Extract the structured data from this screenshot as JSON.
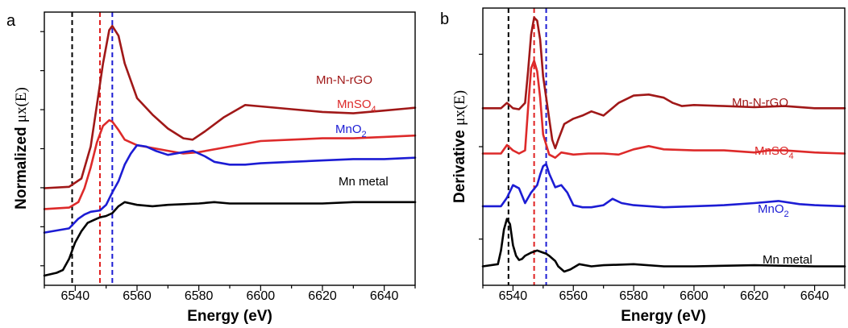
{
  "colors": {
    "mn_n_rgo": "#a01818",
    "mnso4": "#dd2a2a",
    "mno2": "#1c1cd4",
    "mn_metal": "#000000",
    "ref_black": "#000000",
    "ref_red": "#e02020",
    "ref_blue": "#1c1cd4"
  },
  "chart_data": [
    {
      "panel": "a",
      "type": "line",
      "xlabel": "Energy (eV)",
      "ylabel_prefix": "Normalized ",
      "ylabel_symbol": "μx(E)",
      "xlim": [
        6530,
        6650
      ],
      "xticks": [
        6540,
        6560,
        6580,
        6600,
        6620,
        6640
      ],
      "yticks": [
        "",
        "",
        "",
        "",
        "",
        "",
        ""
      ],
      "reference_lines": [
        {
          "x": 6539,
          "color": "#000000"
        },
        {
          "x": 6548,
          "color": "#e02020"
        },
        {
          "x": 6552,
          "color": "#1c1cd4"
        }
      ],
      "series": [
        {
          "name": "Mn-N-rGO",
          "color": "#a01818",
          "points": [
            [
              6530,
              0.95
            ],
            [
              6538,
              0.96
            ],
            [
              6542,
              1.02
            ],
            [
              6545,
              1.25
            ],
            [
              6547,
              1.55
            ],
            [
              6549,
              1.85
            ],
            [
              6551,
              2.09
            ],
            [
              6552,
              2.12
            ],
            [
              6554,
              2.05
            ],
            [
              6556,
              1.85
            ],
            [
              6560,
              1.6
            ],
            [
              6565,
              1.48
            ],
            [
              6570,
              1.38
            ],
            [
              6575,
              1.31
            ],
            [
              6578,
              1.3
            ],
            [
              6582,
              1.36
            ],
            [
              6588,
              1.46
            ],
            [
              6595,
              1.55
            ],
            [
              6600,
              1.54
            ],
            [
              6610,
              1.52
            ],
            [
              6620,
              1.5
            ],
            [
              6630,
              1.49
            ],
            [
              6640,
              1.51
            ],
            [
              6650,
              1.53
            ]
          ]
        },
        {
          "name": "MnSO4",
          "label_main": "MnSO",
          "label_sub": "4",
          "color": "#dd2a2a",
          "points": [
            [
              6530,
              0.8
            ],
            [
              6538,
              0.81
            ],
            [
              6541,
              0.85
            ],
            [
              6543,
              0.95
            ],
            [
              6545,
              1.1
            ],
            [
              6547,
              1.28
            ],
            [
              6549,
              1.4
            ],
            [
              6551,
              1.44
            ],
            [
              6552,
              1.43
            ],
            [
              6554,
              1.37
            ],
            [
              6556,
              1.3
            ],
            [
              6560,
              1.26
            ],
            [
              6565,
              1.24
            ],
            [
              6570,
              1.22
            ],
            [
              6575,
              1.2
            ],
            [
              6580,
              1.21
            ],
            [
              6590,
              1.25
            ],
            [
              6600,
              1.29
            ],
            [
              6610,
              1.3
            ],
            [
              6620,
              1.31
            ],
            [
              6630,
              1.31
            ],
            [
              6640,
              1.32
            ],
            [
              6650,
              1.33
            ]
          ]
        },
        {
          "name": "MnO2",
          "label_main": "MnO",
          "label_sub": "2",
          "color": "#1c1cd4",
          "points": [
            [
              6530,
              0.63
            ],
            [
              6538,
              0.66
            ],
            [
              6541,
              0.73
            ],
            [
              6543,
              0.76
            ],
            [
              6545,
              0.78
            ],
            [
              6548,
              0.79
            ],
            [
              6550,
              0.83
            ],
            [
              6552,
              0.92
            ],
            [
              6554,
              1.0
            ],
            [
              6556,
              1.12
            ],
            [
              6558,
              1.2
            ],
            [
              6560,
              1.26
            ],
            [
              6563,
              1.25
            ],
            [
              6566,
              1.22
            ],
            [
              6570,
              1.19
            ],
            [
              6575,
              1.21
            ],
            [
              6578,
              1.22
            ],
            [
              6582,
              1.18
            ],
            [
              6585,
              1.14
            ],
            [
              6590,
              1.12
            ],
            [
              6595,
              1.12
            ],
            [
              6600,
              1.13
            ],
            [
              6610,
              1.14
            ],
            [
              6620,
              1.15
            ],
            [
              6630,
              1.16
            ],
            [
              6640,
              1.16
            ],
            [
              6650,
              1.17
            ]
          ]
        },
        {
          "name": "Mn metal",
          "color": "#000000",
          "points": [
            [
              6530,
              0.32
            ],
            [
              6534,
              0.34
            ],
            [
              6536,
              0.36
            ],
            [
              6538,
              0.44
            ],
            [
              6540,
              0.56
            ],
            [
              6542,
              0.64
            ],
            [
              6544,
              0.7
            ],
            [
              6546,
              0.72
            ],
            [
              6548,
              0.74
            ],
            [
              6550,
              0.75
            ],
            [
              6552,
              0.77
            ],
            [
              6554,
              0.82
            ],
            [
              6556,
              0.85
            ],
            [
              6558,
              0.84
            ],
            [
              6560,
              0.83
            ],
            [
              6565,
              0.82
            ],
            [
              6570,
              0.83
            ],
            [
              6580,
              0.84
            ],
            [
              6585,
              0.85
            ],
            [
              6590,
              0.84
            ],
            [
              6600,
              0.84
            ],
            [
              6610,
              0.84
            ],
            [
              6620,
              0.84
            ],
            [
              6630,
              0.85
            ],
            [
              6640,
              0.85
            ],
            [
              6650,
              0.85
            ]
          ]
        }
      ]
    },
    {
      "panel": "b",
      "type": "line",
      "xlabel": "Energy (eV)",
      "ylabel_prefix": "Derivative ",
      "ylabel_symbol": "μx(E)",
      "xlim": [
        6530,
        6650
      ],
      "xticks": [
        6540,
        6560,
        6580,
        6600,
        6620,
        6640
      ],
      "yticks": [
        "",
        "",
        ""
      ],
      "reference_lines": [
        {
          "x": 6538.5,
          "color": "#000000"
        },
        {
          "x": 6547,
          "color": "#e02020"
        },
        {
          "x": 6551,
          "color": "#1c1cd4"
        }
      ],
      "series": [
        {
          "name": "Mn-N-rGO",
          "color": "#a01818",
          "points": [
            [
              6530,
              1.5
            ],
            [
              6536,
              1.5
            ],
            [
              6538,
              1.55
            ],
            [
              6540,
              1.5
            ],
            [
              6542,
              1.49
            ],
            [
              6544,
              1.55
            ],
            [
              6545,
              1.85
            ],
            [
              6546,
              2.2
            ],
            [
              6547,
              2.36
            ],
            [
              6548,
              2.33
            ],
            [
              6549,
              2.15
            ],
            [
              6550,
              1.8
            ],
            [
              6551,
              1.6
            ],
            [
              6552,
              1.4
            ],
            [
              6553,
              1.2
            ],
            [
              6554,
              1.12
            ],
            [
              6555,
              1.2
            ],
            [
              6557,
              1.35
            ],
            [
              6560,
              1.4
            ],
            [
              6563,
              1.43
            ],
            [
              6566,
              1.47
            ],
            [
              6570,
              1.43
            ],
            [
              6575,
              1.55
            ],
            [
              6580,
              1.62
            ],
            [
              6585,
              1.63
            ],
            [
              6590,
              1.6
            ],
            [
              6593,
              1.55
            ],
            [
              6596,
              1.52
            ],
            [
              6600,
              1.53
            ],
            [
              6610,
              1.52
            ],
            [
              6620,
              1.51
            ],
            [
              6630,
              1.52
            ],
            [
              6640,
              1.5
            ],
            [
              6650,
              1.5
            ]
          ]
        },
        {
          "name": "MnSO4",
          "label_main": "MnSO",
          "label_sub": "4",
          "color": "#dd2a2a",
          "points": [
            [
              6530,
              1.07
            ],
            [
              6536,
              1.07
            ],
            [
              6538,
              1.15
            ],
            [
              6540,
              1.1
            ],
            [
              6542,
              1.07
            ],
            [
              6544,
              1.1
            ],
            [
              6545,
              1.5
            ],
            [
              6546,
              1.88
            ],
            [
              6547,
              1.95
            ],
            [
              6548,
              1.85
            ],
            [
              6549,
              1.6
            ],
            [
              6550,
              1.25
            ],
            [
              6552,
              1.06
            ],
            [
              6554,
              1.03
            ],
            [
              6556,
              1.08
            ],
            [
              6560,
              1.06
            ],
            [
              6565,
              1.07
            ],
            [
              6570,
              1.07
            ],
            [
              6575,
              1.06
            ],
            [
              6580,
              1.11
            ],
            [
              6585,
              1.14
            ],
            [
              6590,
              1.11
            ],
            [
              6600,
              1.1
            ],
            [
              6610,
              1.1
            ],
            [
              6620,
              1.08
            ],
            [
              6625,
              1.1
            ],
            [
              6630,
              1.1
            ],
            [
              6640,
              1.08
            ],
            [
              6650,
              1.07
            ]
          ]
        },
        {
          "name": "MnO2",
          "label_main": "MnO",
          "label_sub": "2",
          "color": "#1c1cd4",
          "points": [
            [
              6530,
              0.57
            ],
            [
              6536,
              0.57
            ],
            [
              6538,
              0.65
            ],
            [
              6540,
              0.77
            ],
            [
              6542,
              0.74
            ],
            [
              6544,
              0.6
            ],
            [
              6546,
              0.7
            ],
            [
              6548,
              0.77
            ],
            [
              6549,
              0.87
            ],
            [
              6550,
              0.95
            ],
            [
              6551,
              0.97
            ],
            [
              6552,
              0.88
            ],
            [
              6554,
              0.75
            ],
            [
              6556,
              0.77
            ],
            [
              6558,
              0.7
            ],
            [
              6560,
              0.58
            ],
            [
              6563,
              0.56
            ],
            [
              6566,
              0.56
            ],
            [
              6570,
              0.58
            ],
            [
              6573,
              0.64
            ],
            [
              6576,
              0.6
            ],
            [
              6580,
              0.58
            ],
            [
              6590,
              0.56
            ],
            [
              6600,
              0.57
            ],
            [
              6610,
              0.58
            ],
            [
              6620,
              0.6
            ],
            [
              6628,
              0.62
            ],
            [
              6635,
              0.59
            ],
            [
              6640,
              0.58
            ],
            [
              6650,
              0.57
            ]
          ]
        },
        {
          "name": "Mn metal",
          "color": "#000000",
          "points": [
            [
              6530,
              0.0
            ],
            [
              6535,
              0.02
            ],
            [
              6536,
              0.15
            ],
            [
              6537,
              0.35
            ],
            [
              6538,
              0.45
            ],
            [
              6539,
              0.4
            ],
            [
              6540,
              0.2
            ],
            [
              6541,
              0.1
            ],
            [
              6542,
              0.06
            ],
            [
              6543,
              0.07
            ],
            [
              6544,
              0.1
            ],
            [
              6546,
              0.13
            ],
            [
              6548,
              0.15
            ],
            [
              6550,
              0.13
            ],
            [
              6551,
              0.12
            ],
            [
              6552,
              0.1
            ],
            [
              6554,
              0.05
            ],
            [
              6555,
              0.0
            ],
            [
              6557,
              -0.05
            ],
            [
              6559,
              -0.03
            ],
            [
              6562,
              0.02
            ],
            [
              6566,
              0.0
            ],
            [
              6570,
              0.01
            ],
            [
              6580,
              0.02
            ],
            [
              6590,
              0.0
            ],
            [
              6600,
              0.0
            ],
            [
              6620,
              0.01
            ],
            [
              6640,
              0.0
            ],
            [
              6650,
              0.0
            ]
          ]
        }
      ]
    }
  ]
}
